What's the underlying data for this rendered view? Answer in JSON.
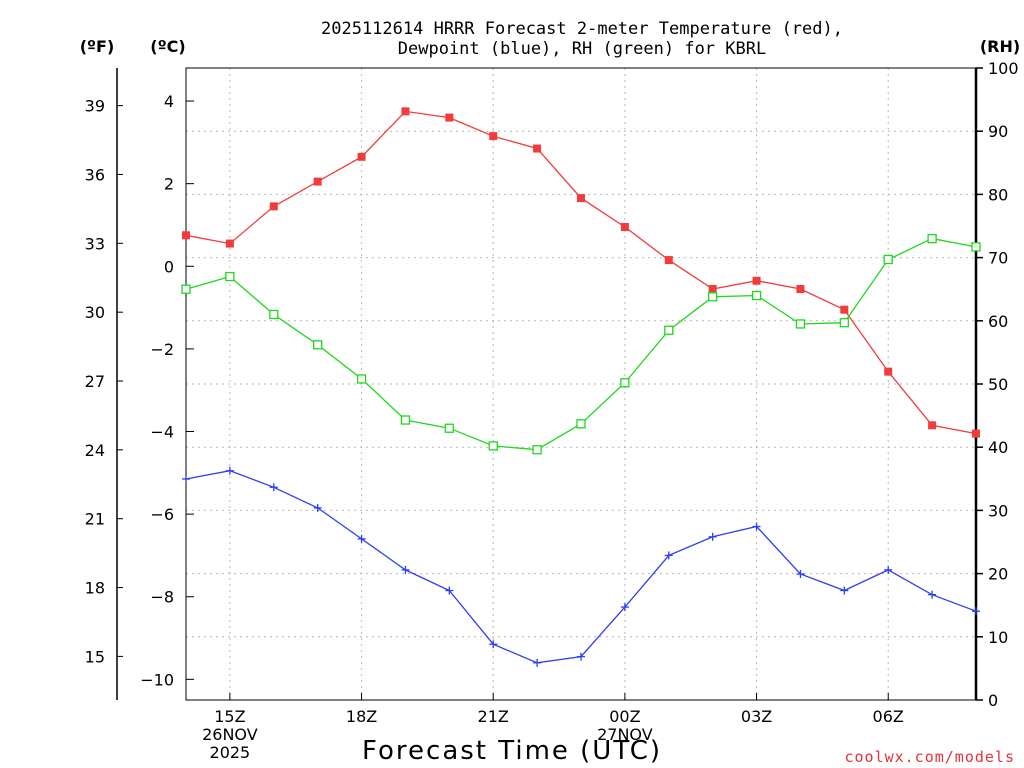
{
  "chart_data": {
    "type": "line",
    "title_lines": [
      "2025112614 HRRR Forecast 2-meter Temperature (red),",
      "Dewpoint (blue), RH (green) for KBRL"
    ],
    "xlabel": "Forecast Time (UTC)",
    "credit": "coolwx.com/models",
    "unit_labels": {
      "fahrenheit": "(ºF)",
      "celsius": "(ºC)",
      "rh": "(RH)"
    },
    "x_hours": [
      0,
      1,
      2,
      3,
      4,
      5,
      6,
      7,
      8,
      9,
      10,
      11,
      12,
      13,
      14,
      15,
      16,
      17,
      18
    ],
    "x_ticks": [
      {
        "x": 1,
        "lines": [
          "15Z",
          "26NOV",
          "2025"
        ]
      },
      {
        "x": 4,
        "lines": [
          "18Z"
        ]
      },
      {
        "x": 7,
        "lines": [
          "21Z"
        ]
      },
      {
        "x": 10,
        "lines": [
          "00Z",
          "27NOV"
        ]
      },
      {
        "x": 13,
        "lines": [
          "03Z"
        ]
      },
      {
        "x": 16,
        "lines": [
          "06Z"
        ]
      }
    ],
    "xlim": [
      0,
      18
    ],
    "ylim_c": [
      -10.5,
      4.8
    ],
    "ylim_rh": [
      0,
      100
    ],
    "y_ticks_c": [
      -10,
      -8,
      -6,
      -4,
      -2,
      0,
      2,
      4
    ],
    "y_ticks_f": [
      15,
      18,
      21,
      24,
      27,
      30,
      33,
      36,
      39
    ],
    "y_ticks_rh": [
      0,
      10,
      20,
      30,
      40,
      50,
      60,
      70,
      80,
      90,
      100
    ],
    "series": [
      {
        "name": "Temperature",
        "axis": "c",
        "color": "#f03c3c",
        "marker": "filled-square",
        "values": [
          0.75,
          0.55,
          1.45,
          2.05,
          2.65,
          3.75,
          3.6,
          3.15,
          2.85,
          1.65,
          0.95,
          0.15,
          -0.55,
          -0.35,
          -0.55,
          -1.05,
          -2.55,
          -3.85,
          -4.05
        ]
      },
      {
        "name": "Dewpoint",
        "axis": "c",
        "color": "#2b3ff0",
        "marker": "plus",
        "values": [
          -5.15,
          -4.95,
          -5.35,
          -5.85,
          -6.6,
          -7.35,
          -7.85,
          -9.15,
          -9.6,
          -9.45,
          -8.25,
          -7.0,
          -6.55,
          -6.3,
          -7.45,
          -7.85,
          -7.35,
          -7.95,
          -8.35
        ]
      },
      {
        "name": "RH",
        "axis": "rh",
        "color": "#1ed81e",
        "marker": "open-square",
        "values": [
          65,
          67,
          61,
          56.2,
          50.8,
          44.3,
          43,
          40.2,
          39.6,
          43.7,
          50.2,
          58.5,
          63.8,
          64,
          59.5,
          59.7,
          69.7,
          73,
          71.7
        ]
      }
    ]
  }
}
